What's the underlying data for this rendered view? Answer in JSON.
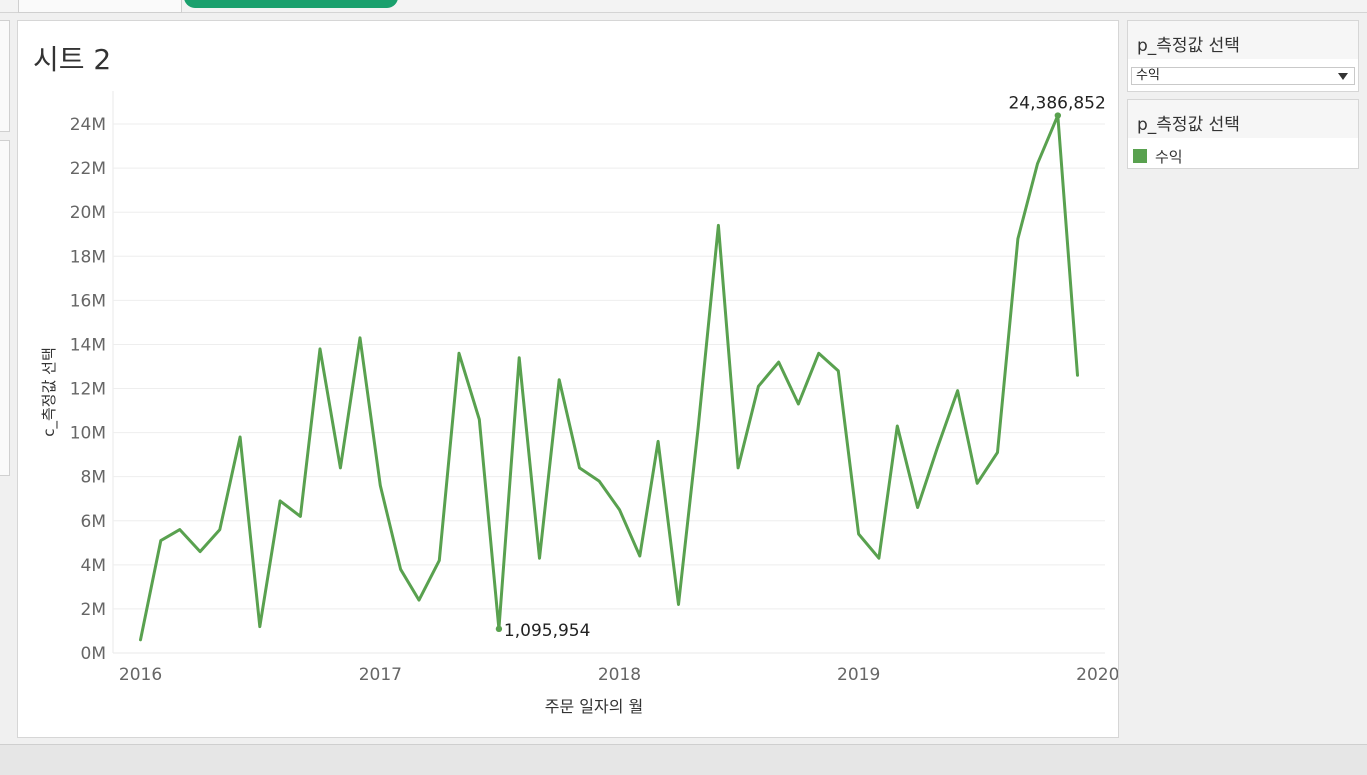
{
  "sheet": {
    "title": "시트 2"
  },
  "panels": {
    "param": {
      "title": "p_측정값 선택",
      "selected": "수익"
    },
    "legend": {
      "title": "p_측정값 선택",
      "items": [
        {
          "label": "수익",
          "color": "#59a14f"
        }
      ]
    }
  },
  "chart_data": {
    "type": "line",
    "ylabel": "c_측정값 선택",
    "xlabel": "주문 일자의 월",
    "ylim": [
      0,
      25.5
    ],
    "y_ticks": [
      0,
      2,
      4,
      6,
      8,
      10,
      12,
      14,
      16,
      18,
      20,
      22,
      24
    ],
    "y_tick_labels": [
      "0M",
      "2M",
      "4M",
      "6M",
      "8M",
      "10M",
      "12M",
      "14M",
      "16M",
      "18M",
      "20M",
      "22M",
      "24M"
    ],
    "x_range": [
      "2015-11-20",
      "2020-01-12"
    ],
    "x_ticks": [
      "2016-01-01",
      "2017-01-01",
      "2018-01-01",
      "2019-01-01",
      "2020-01-01"
    ],
    "x_tick_labels": [
      "2016",
      "2017",
      "2018",
      "2019",
      "2020"
    ],
    "grid": "horizontal",
    "line_color": "#59a14f",
    "series": [
      {
        "name": "수익",
        "x": [
          "2016-01",
          "2016-02",
          "2016-03",
          "2016-04",
          "2016-05",
          "2016-06",
          "2016-07",
          "2016-08",
          "2016-09",
          "2016-10",
          "2016-11",
          "2016-12",
          "2017-01",
          "2017-02",
          "2017-03",
          "2017-04",
          "2017-05",
          "2017-06",
          "2017-07",
          "2017-08",
          "2017-09",
          "2017-10",
          "2017-11",
          "2017-12",
          "2018-01",
          "2018-02",
          "2018-03",
          "2018-04",
          "2018-05",
          "2018-06",
          "2018-07",
          "2018-08",
          "2018-09",
          "2018-10",
          "2018-11",
          "2018-12",
          "2019-01",
          "2019-02",
          "2019-03",
          "2019-04",
          "2019-05",
          "2019-06",
          "2019-07",
          "2019-08",
          "2019-09",
          "2019-10",
          "2019-11",
          "2019-12"
        ],
        "values": [
          0.6,
          5.1,
          5.6,
          4.6,
          5.6,
          9.8,
          1.2,
          6.9,
          6.2,
          13.8,
          8.4,
          14.3,
          7.6,
          3.8,
          2.4,
          4.2,
          13.6,
          10.6,
          1.095954,
          13.4,
          4.3,
          12.4,
          8.4,
          7.8,
          6.5,
          4.4,
          9.6,
          2.2,
          10.2,
          19.4,
          8.4,
          12.1,
          13.2,
          11.3,
          13.6,
          12.8,
          5.4,
          4.3,
          10.3,
          6.6,
          9.3,
          11.9,
          7.7,
          9.1,
          18.8,
          22.2,
          24.386852,
          12.6
        ]
      }
    ],
    "annotations": [
      {
        "x": "2017-07",
        "value": 1.095954,
        "label": "1,095,954"
      },
      {
        "x": "2019-11",
        "value": 24.386852,
        "label": "24,386,852"
      }
    ]
  }
}
